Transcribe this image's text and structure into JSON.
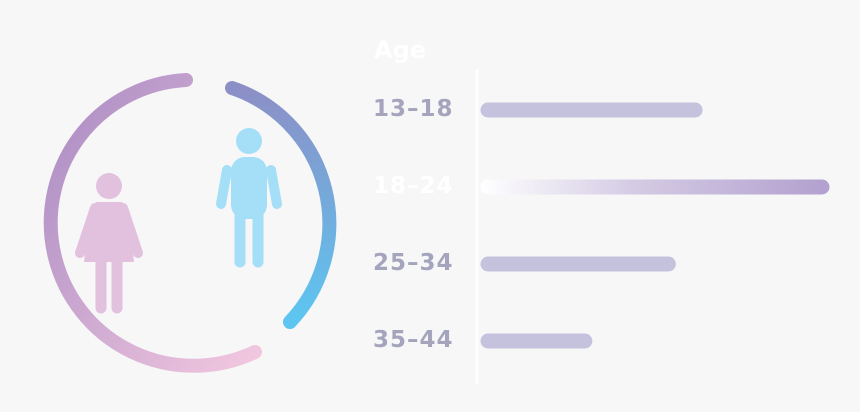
{
  "colors": {
    "background": "#f7f7f8",
    "female": "#e2c1de",
    "male": "#a5def7",
    "ring_female_start": "#a98bc3",
    "ring_female_end": "#f2c7df",
    "ring_male_start": "#8c8fc6",
    "ring_male_end": "#5cc6f1",
    "bar": "#c5c2de",
    "bar_highlight": "#b3a1cf",
    "label": "#a4a4bd",
    "label_highlight": "#ffffff",
    "axis": "#ffffff"
  },
  "icons": [
    "female-person-icon",
    "male-person-icon"
  ],
  "chart_data": {
    "type": "bar",
    "orientation": "horizontal",
    "title": "Age",
    "categories": [
      "13-18",
      "18-24",
      "25-34",
      "35-44"
    ],
    "category_labels": [
      "13–18",
      "18–24",
      "25–34",
      "35–44"
    ],
    "values": [
      0.62,
      1.0,
      0.54,
      0.29
    ],
    "highlighted": "18-24",
    "grid": false,
    "legend": "none"
  }
}
